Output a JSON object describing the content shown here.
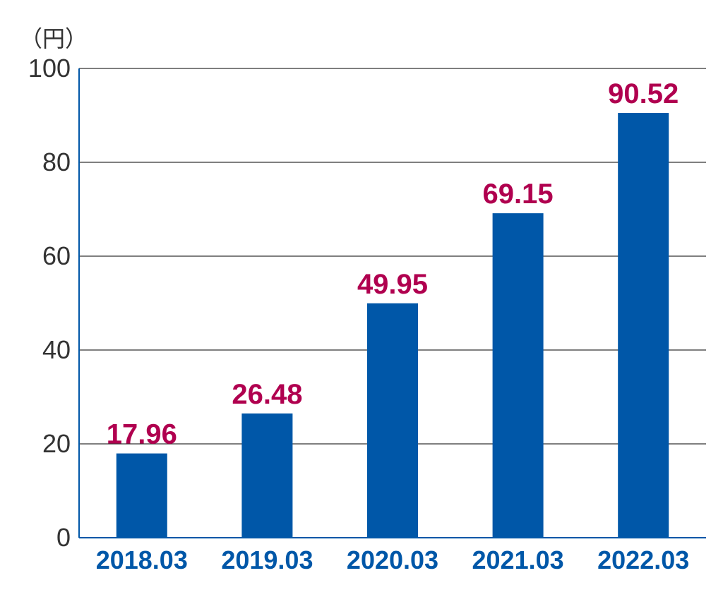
{
  "chart_data": {
    "type": "bar",
    "unit_label": "（円）",
    "categories": [
      "2018.03",
      "2019.03",
      "2020.03",
      "2021.03",
      "2022.03"
    ],
    "values": [
      17.96,
      26.48,
      49.95,
      69.15,
      90.52
    ],
    "value_labels": [
      "17.96",
      "26.48",
      "49.95",
      "69.15",
      "90.52"
    ],
    "ylim": [
      0,
      100
    ],
    "yticks": [
      0,
      20,
      40,
      60,
      80,
      100
    ],
    "ytick_labels": [
      "0",
      "20",
      "40",
      "60",
      "80",
      "100"
    ],
    "grid": true,
    "colors": {
      "bar": "#0057a8",
      "axis": "#0057a8",
      "gridline": "#333333",
      "data_label": "#b0004f",
      "x_tick": "#0057a8",
      "y_tick": "#333333"
    }
  }
}
